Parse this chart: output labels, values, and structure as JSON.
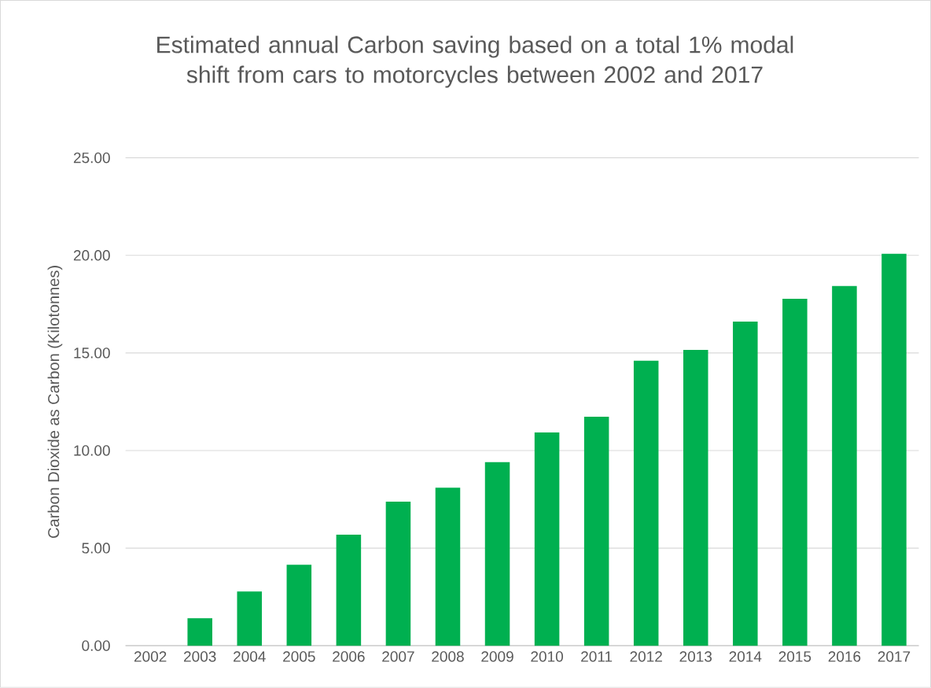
{
  "chart_data": {
    "type": "bar",
    "title": "Estimated annual Carbon saving based on a total 1% modal shift from cars to motorcycles between 2002 and 2017",
    "ylabel": "Carbon Dioxide as Carbon (Kilotonnes)",
    "categories": [
      "2002",
      "2003",
      "2004",
      "2005",
      "2006",
      "2007",
      "2008",
      "2009",
      "2010",
      "2011",
      "2012",
      "2013",
      "2014",
      "2015",
      "2016",
      "2017"
    ],
    "values": [
      0,
      1.41,
      2.78,
      4.15,
      5.69,
      7.38,
      8.1,
      9.4,
      10.93,
      11.73,
      14.6,
      15.16,
      16.61,
      17.78,
      18.43,
      20.08
    ],
    "color": "#00b050",
    "ylim": [
      0,
      25
    ],
    "yticks": [
      {
        "value": 0,
        "label": "0.00"
      },
      {
        "value": 5,
        "label": "5.00"
      },
      {
        "value": 10,
        "label": "10.00"
      },
      {
        "value": 15,
        "label": "15.00"
      },
      {
        "value": 20,
        "label": "20.00"
      },
      {
        "value": 25,
        "label": "25.00"
      }
    ],
    "grid": "y"
  }
}
